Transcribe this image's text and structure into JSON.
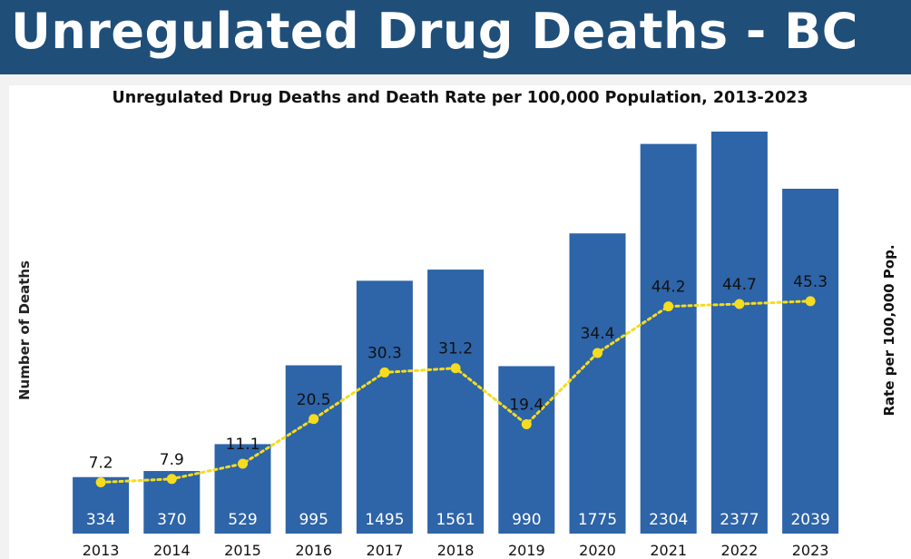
{
  "header": {
    "title": "Unregulated Drug Deaths - BC"
  },
  "chart_data": {
    "type": "bar",
    "title": "Unregulated Drug Deaths and Death Rate per 100,000 Population, 2013-2023",
    "xlabel": "",
    "ylabel": "Number of Deaths",
    "y2label": "Rate per 100,000 Pop.",
    "categories": [
      "2013",
      "2014",
      "2015",
      "2016",
      "2017",
      "2018",
      "2019",
      "2020",
      "2021",
      "2022",
      "2023"
    ],
    "series": [
      {
        "name": "Number of Deaths",
        "type": "bar",
        "axis": "left",
        "values": [
          334,
          370,
          529,
          995,
          1495,
          1561,
          990,
          1775,
          2304,
          2377,
          2039
        ]
      },
      {
        "name": "Rate per 100,000 Pop.",
        "type": "line",
        "axis": "right",
        "values": [
          7.2,
          7.9,
          11.1,
          20.5,
          30.3,
          31.2,
          19.4,
          34.4,
          44.2,
          44.7,
          45.3
        ]
      }
    ],
    "grid": false,
    "colors": {
      "bar": "#2e64a8",
      "line": "#f5dc1e",
      "header": "#1f4e79"
    }
  }
}
